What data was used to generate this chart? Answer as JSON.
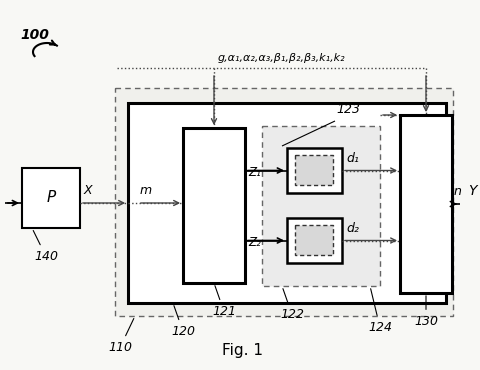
{
  "background_color": "#f8f8f5",
  "label_100": "100",
  "label_fig": "Fig. 1",
  "label_140": "140",
  "label_P": "P",
  "label_X": "X",
  "label_m": "m",
  "label_110": "110",
  "label_120": "120",
  "label_121": "121",
  "label_122": "122",
  "label_123": "123",
  "label_124": "124",
  "label_130": "130",
  "label_Z1": "Z₁",
  "label_Z2": "Z₂",
  "label_d1": "d₁",
  "label_d2": "d₂",
  "label_n": "n",
  "label_Y": "Y",
  "label_params": "g,α₁,α₂,α₃,β₁,β₂,β₃,k₁,k₂"
}
